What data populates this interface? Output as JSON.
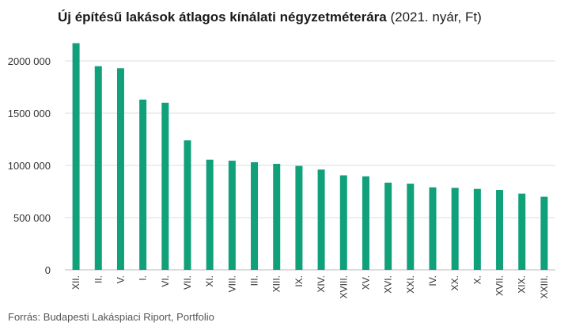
{
  "title_bold": "Új építésű lakások átlagos kínálati négyzetméterára",
  "title_rest": " (2021. nyár, Ft)",
  "source": "Forrás: Budapesti Lakáspiaci Riport, Portfolio",
  "colors": {
    "bar": "#10a07a",
    "grid": "#dcdcdc",
    "axis": "#bbbbbb",
    "text": "#333333"
  },
  "chart_data": {
    "type": "bar",
    "categories": [
      "XII.",
      "II.",
      "V.",
      "I.",
      "VI.",
      "VII.",
      "XI.",
      "VIII.",
      "III.",
      "XIII.",
      "IX.",
      "XIV.",
      "XVIII.",
      "XV.",
      "XVI.",
      "XXI.",
      "IV.",
      "XX.",
      "X.",
      "XVII.",
      "XIX.",
      "XXIII."
    ],
    "values": [
      2170000,
      1950000,
      1930000,
      1630000,
      1600000,
      1240000,
      1055000,
      1045000,
      1030000,
      1015000,
      995000,
      960000,
      905000,
      895000,
      835000,
      825000,
      790000,
      785000,
      775000,
      765000,
      730000,
      700000
    ],
    "yticks": [
      "0",
      "500 000",
      "1000 000",
      "1500 000",
      "2000 000"
    ],
    "ytick_values": [
      0,
      500000,
      1000000,
      1500000,
      2000000
    ],
    "ylim": [
      0,
      2200000
    ],
    "grid": true
  }
}
